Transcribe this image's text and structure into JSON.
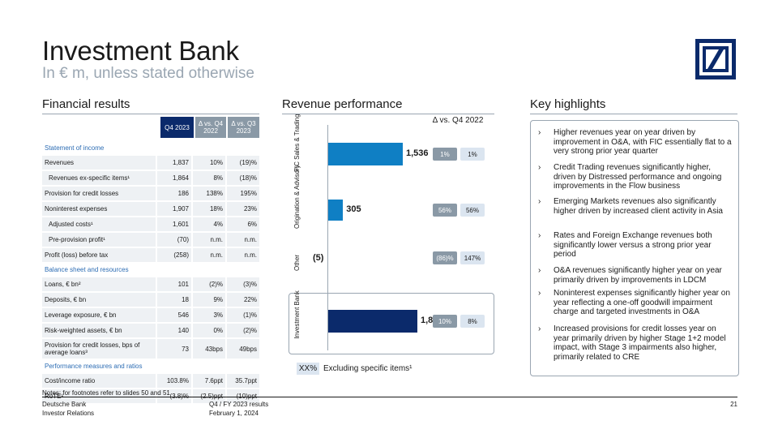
{
  "header": {
    "title": "Investment Bank",
    "subtitle": "In € m, unless stated otherwise"
  },
  "financial": {
    "heading": "Financial results",
    "col_headers": [
      "Q4 2023",
      "Δ vs. Q4 2022",
      "Δ vs. Q3 2023"
    ],
    "rows": [
      {
        "type": "section",
        "label": "Statement of income"
      },
      {
        "type": "row",
        "label": "Revenues",
        "v": [
          "1,837",
          "10%",
          "(19)%"
        ]
      },
      {
        "type": "row",
        "label": "Revenues ex-specific items¹",
        "indent": true,
        "v": [
          "1,864",
          "8%",
          "(18)%"
        ]
      },
      {
        "type": "row",
        "label": "Provision for credit losses",
        "v": [
          "186",
          "138%",
          "195%"
        ]
      },
      {
        "type": "row",
        "label": "Noninterest expenses",
        "v": [
          "1,907",
          "18%",
          "23%"
        ]
      },
      {
        "type": "row",
        "label": "Adjusted costs¹",
        "indent": true,
        "v": [
          "1,601",
          "4%",
          "6%"
        ]
      },
      {
        "type": "row",
        "label": "Pre-provision profit¹",
        "indent": true,
        "v": [
          "(70)",
          "n.m.",
          "n.m."
        ]
      },
      {
        "type": "row",
        "label": "Profit (loss) before tax",
        "v": [
          "(258)",
          "n.m.",
          "n.m."
        ]
      },
      {
        "type": "section",
        "label": "Balance sheet and resources"
      },
      {
        "type": "row",
        "label": "Loans, € bn²",
        "v": [
          "101",
          "(2)%",
          "(3)%"
        ]
      },
      {
        "type": "row",
        "label": "Deposits, € bn",
        "v": [
          "18",
          "9%",
          "22%"
        ]
      },
      {
        "type": "row",
        "label": "Leverage exposure, € bn",
        "v": [
          "546",
          "3%",
          "(1)%"
        ]
      },
      {
        "type": "row",
        "label": "Risk-weighted assets, € bn",
        "v": [
          "140",
          "0%",
          "(2)%"
        ]
      },
      {
        "type": "tall",
        "label": "Provision for credit losses, bps of average loans³",
        "v": [
          "73",
          "43bps",
          "49bps"
        ]
      },
      {
        "type": "section",
        "label": "Performance measures and ratios"
      },
      {
        "type": "row",
        "label": "Cost/income ratio",
        "v": [
          "103.8%",
          "7.6ppt",
          "35.7ppt"
        ]
      },
      {
        "type": "row",
        "label": "RoTE¹",
        "v": [
          "(3.8)%",
          "(2.5)ppt",
          "(10)ppt"
        ]
      }
    ],
    "notes": "Notes: for footnotes refer to slides 50 and 51"
  },
  "revenue": {
    "heading": "Revenue performance",
    "delta_header": "Δ vs. Q4 2022",
    "legend_pill": "XX%",
    "legend_text": "Excluding specific items¹"
  },
  "chart_data": {
    "type": "bar",
    "orientation": "horizontal",
    "categories": [
      "FIC Sales & Trading",
      "Origination & Advisory",
      "Other",
      "Investment Bank"
    ],
    "values": [
      1536,
      305,
      -5,
      1837
    ],
    "value_labels": [
      "1,536",
      "305",
      "(5)",
      "1,837"
    ],
    "delta_vs_q4_2022": [
      "1%",
      "56%",
      "(86)%",
      "10%"
    ],
    "delta_ex_specific_items": [
      "1%",
      "56%",
      "147%",
      "8%"
    ],
    "colors": {
      "segments": "#0f7fc4",
      "total": "#0b2a6b",
      "pill_dark": "#8a99a6",
      "pill_light": "#dbe5f0"
    }
  },
  "highlights": {
    "heading": "Key highlights",
    "items": [
      "Higher revenues year on year driven by improvement in O&A, with FIC essentially flat to a very strong prior year quarter",
      "Credit Trading revenues significantly higher, driven by Distressed performance and ongoing improvements in the Flow business",
      "Emerging Markets revenues also significantly higher driven by increased client activity in Asia",
      "Rates and Foreign Exchange revenues both significantly lower versus a strong prior year period",
      "O&A revenues significantly higher year on year primarily driven by improvements in LDCM",
      "Noninterest expenses significantly higher year on year reflecting a one-off goodwill impairment charge and targeted investments in O&A",
      "Increased provisions for credit losses year on year primarily driven by higher Stage 1+2 model impact, with Stage 3 impairments also higher, primarily related to CRE"
    ]
  },
  "footer": {
    "org1": "Deutsche Bank",
    "org2": "Investor Relations",
    "report": "Q4 / FY 2023 results",
    "date": "February 1, 2024",
    "page": "21"
  },
  "colors": {
    "navy": "#0b2a6b",
    "blue": "#0f7fc4",
    "grey": "#8a99a6",
    "accent_text": "#2d6db4"
  }
}
